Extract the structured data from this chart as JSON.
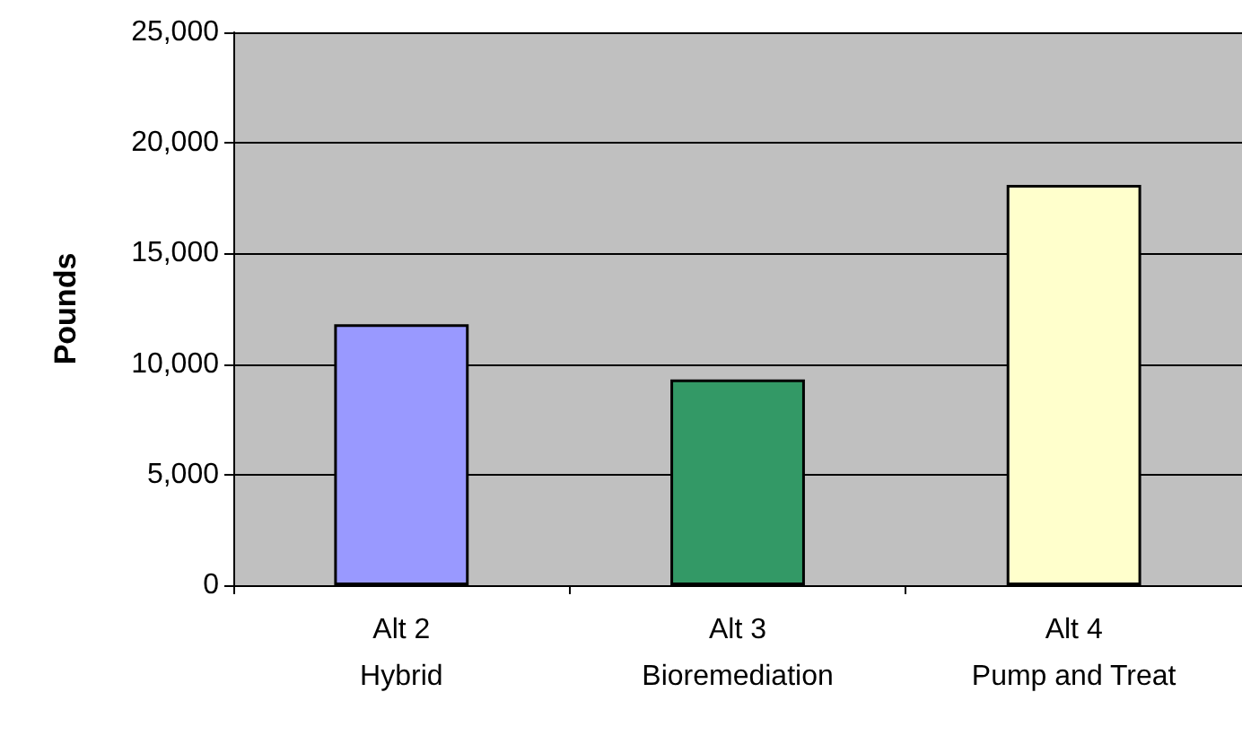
{
  "chart_data": {
    "type": "bar",
    "ylabel": "Pounds",
    "categories": [
      "Alt 2\nHybrid",
      "Alt 3\nBioremediation",
      "Alt 4\nPump and Treat"
    ],
    "values": [
      11800,
      9300,
      18100
    ],
    "colors": [
      "#9999ff",
      "#339966",
      "#ffffcc"
    ],
    "ylim": [
      0,
      25000
    ],
    "yticks": [
      0,
      {
        "value": 5000,
        "label": "5,000"
      },
      {
        "value": 10000,
        "label": "10,000"
      },
      {
        "value": 15000,
        "label": "15,000"
      },
      {
        "value": 20000,
        "label": "20,000"
      },
      {
        "value": 25000,
        "label": "25,000"
      }
    ],
    "grid": "y"
  }
}
